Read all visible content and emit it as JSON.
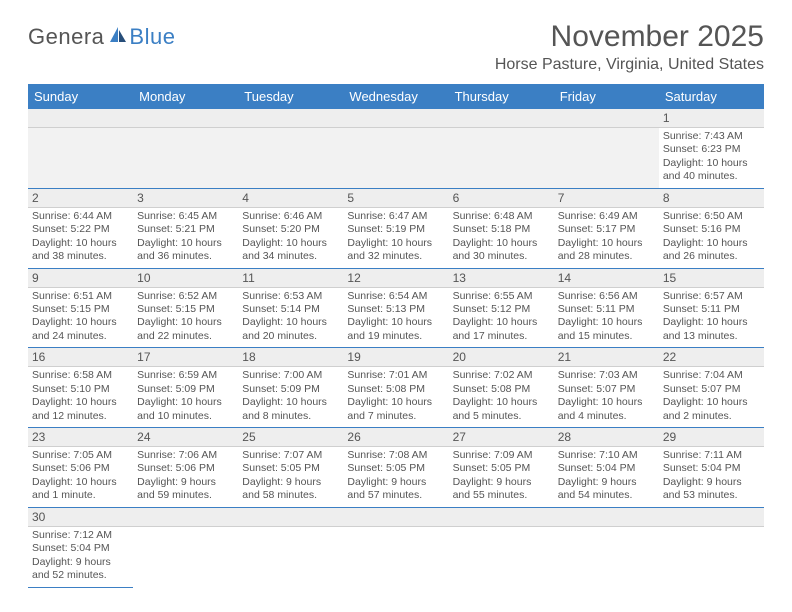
{
  "logo": {
    "part1": "Genera",
    "part2": "Blue"
  },
  "title": "November 2025",
  "location": "Horse Pasture, Virginia, United States",
  "dow": [
    "Sunday",
    "Monday",
    "Tuesday",
    "Wednesday",
    "Thursday",
    "Friday",
    "Saturday"
  ],
  "colors": {
    "header_bg": "#3b7fc4",
    "accent": "#3b7fc4",
    "row_bg": "#eeeeee",
    "text": "#555555"
  },
  "weeks": [
    {
      "nums": [
        "",
        "",
        "",
        "",
        "",
        "",
        "1"
      ],
      "cells": [
        null,
        null,
        null,
        null,
        null,
        null,
        {
          "sr": "Sunrise: 7:43 AM",
          "ss": "Sunset: 6:23 PM",
          "dl": "Daylight: 10 hours and 40 minutes."
        }
      ]
    },
    {
      "nums": [
        "2",
        "3",
        "4",
        "5",
        "6",
        "7",
        "8"
      ],
      "cells": [
        {
          "sr": "Sunrise: 6:44 AM",
          "ss": "Sunset: 5:22 PM",
          "dl": "Daylight: 10 hours and 38 minutes."
        },
        {
          "sr": "Sunrise: 6:45 AM",
          "ss": "Sunset: 5:21 PM",
          "dl": "Daylight: 10 hours and 36 minutes."
        },
        {
          "sr": "Sunrise: 6:46 AM",
          "ss": "Sunset: 5:20 PM",
          "dl": "Daylight: 10 hours and 34 minutes."
        },
        {
          "sr": "Sunrise: 6:47 AM",
          "ss": "Sunset: 5:19 PM",
          "dl": "Daylight: 10 hours and 32 minutes."
        },
        {
          "sr": "Sunrise: 6:48 AM",
          "ss": "Sunset: 5:18 PM",
          "dl": "Daylight: 10 hours and 30 minutes."
        },
        {
          "sr": "Sunrise: 6:49 AM",
          "ss": "Sunset: 5:17 PM",
          "dl": "Daylight: 10 hours and 28 minutes."
        },
        {
          "sr": "Sunrise: 6:50 AM",
          "ss": "Sunset: 5:16 PM",
          "dl": "Daylight: 10 hours and 26 minutes."
        }
      ]
    },
    {
      "nums": [
        "9",
        "10",
        "11",
        "12",
        "13",
        "14",
        "15"
      ],
      "cells": [
        {
          "sr": "Sunrise: 6:51 AM",
          "ss": "Sunset: 5:15 PM",
          "dl": "Daylight: 10 hours and 24 minutes."
        },
        {
          "sr": "Sunrise: 6:52 AM",
          "ss": "Sunset: 5:15 PM",
          "dl": "Daylight: 10 hours and 22 minutes."
        },
        {
          "sr": "Sunrise: 6:53 AM",
          "ss": "Sunset: 5:14 PM",
          "dl": "Daylight: 10 hours and 20 minutes."
        },
        {
          "sr": "Sunrise: 6:54 AM",
          "ss": "Sunset: 5:13 PM",
          "dl": "Daylight: 10 hours and 19 minutes."
        },
        {
          "sr": "Sunrise: 6:55 AM",
          "ss": "Sunset: 5:12 PM",
          "dl": "Daylight: 10 hours and 17 minutes."
        },
        {
          "sr": "Sunrise: 6:56 AM",
          "ss": "Sunset: 5:11 PM",
          "dl": "Daylight: 10 hours and 15 minutes."
        },
        {
          "sr": "Sunrise: 6:57 AM",
          "ss": "Sunset: 5:11 PM",
          "dl": "Daylight: 10 hours and 13 minutes."
        }
      ]
    },
    {
      "nums": [
        "16",
        "17",
        "18",
        "19",
        "20",
        "21",
        "22"
      ],
      "cells": [
        {
          "sr": "Sunrise: 6:58 AM",
          "ss": "Sunset: 5:10 PM",
          "dl": "Daylight: 10 hours and 12 minutes."
        },
        {
          "sr": "Sunrise: 6:59 AM",
          "ss": "Sunset: 5:09 PM",
          "dl": "Daylight: 10 hours and 10 minutes."
        },
        {
          "sr": "Sunrise: 7:00 AM",
          "ss": "Sunset: 5:09 PM",
          "dl": "Daylight: 10 hours and 8 minutes."
        },
        {
          "sr": "Sunrise: 7:01 AM",
          "ss": "Sunset: 5:08 PM",
          "dl": "Daylight: 10 hours and 7 minutes."
        },
        {
          "sr": "Sunrise: 7:02 AM",
          "ss": "Sunset: 5:08 PM",
          "dl": "Daylight: 10 hours and 5 minutes."
        },
        {
          "sr": "Sunrise: 7:03 AM",
          "ss": "Sunset: 5:07 PM",
          "dl": "Daylight: 10 hours and 4 minutes."
        },
        {
          "sr": "Sunrise: 7:04 AM",
          "ss": "Sunset: 5:07 PM",
          "dl": "Daylight: 10 hours and 2 minutes."
        }
      ]
    },
    {
      "nums": [
        "23",
        "24",
        "25",
        "26",
        "27",
        "28",
        "29"
      ],
      "cells": [
        {
          "sr": "Sunrise: 7:05 AM",
          "ss": "Sunset: 5:06 PM",
          "dl": "Daylight: 10 hours and 1 minute."
        },
        {
          "sr": "Sunrise: 7:06 AM",
          "ss": "Sunset: 5:06 PM",
          "dl": "Daylight: 9 hours and 59 minutes."
        },
        {
          "sr": "Sunrise: 7:07 AM",
          "ss": "Sunset: 5:05 PM",
          "dl": "Daylight: 9 hours and 58 minutes."
        },
        {
          "sr": "Sunrise: 7:08 AM",
          "ss": "Sunset: 5:05 PM",
          "dl": "Daylight: 9 hours and 57 minutes."
        },
        {
          "sr": "Sunrise: 7:09 AM",
          "ss": "Sunset: 5:05 PM",
          "dl": "Daylight: 9 hours and 55 minutes."
        },
        {
          "sr": "Sunrise: 7:10 AM",
          "ss": "Sunset: 5:04 PM",
          "dl": "Daylight: 9 hours and 54 minutes."
        },
        {
          "sr": "Sunrise: 7:11 AM",
          "ss": "Sunset: 5:04 PM",
          "dl": "Daylight: 9 hours and 53 minutes."
        }
      ]
    },
    {
      "nums": [
        "30",
        "",
        "",
        "",
        "",
        "",
        ""
      ],
      "cells": [
        {
          "sr": "Sunrise: 7:12 AM",
          "ss": "Sunset: 5:04 PM",
          "dl": "Daylight: 9 hours and 52 minutes."
        },
        null,
        null,
        null,
        null,
        null,
        null
      ]
    }
  ]
}
